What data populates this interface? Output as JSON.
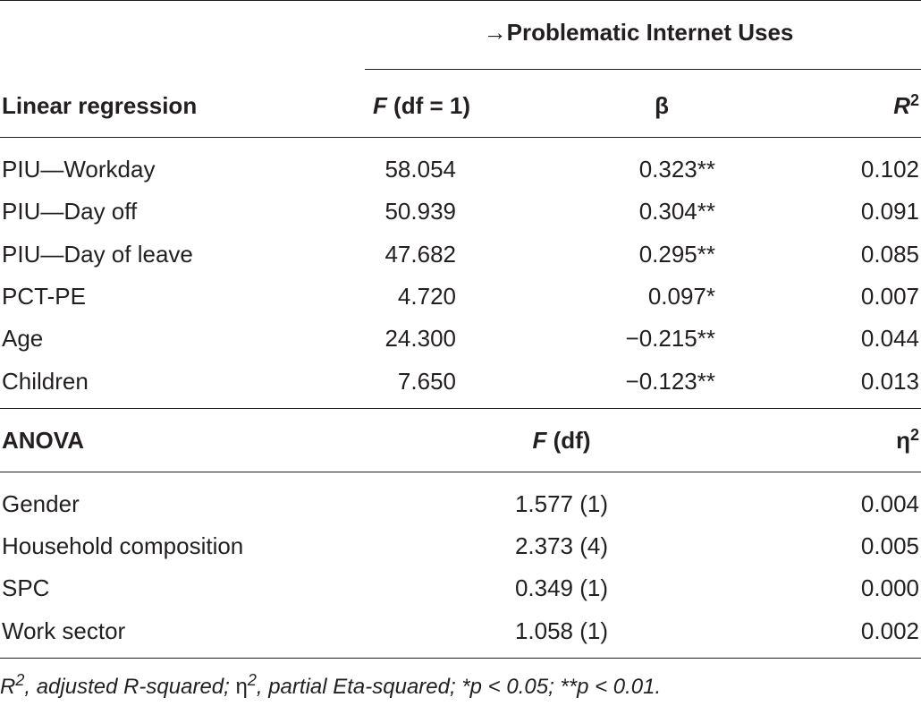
{
  "header": {
    "group_label": "→Problematic Internet Uses",
    "linear": {
      "title": "Linear regression",
      "col_f_italic": "F",
      "col_f_rest": " (df = 1)",
      "col_beta": "β",
      "col_r_italic": "R",
      "col_r_sup": "2"
    },
    "anova": {
      "title": "ANOVA",
      "col_f_italic": "F",
      "col_f_rest": " (df)",
      "col_eta": "η",
      "col_eta_sup": "2"
    }
  },
  "regression_rows": [
    {
      "label": "PIU—Workday",
      "f": "58.054",
      "beta": "0.323**",
      "r2": "0.102"
    },
    {
      "label": "PIU—Day off",
      "f": "50.939",
      "beta": "0.304**",
      "r2": "0.091"
    },
    {
      "label": "PIU—Day of leave",
      "f": "47.682",
      "beta": "0.295**",
      "r2": "0.085"
    },
    {
      "label": "PCT-PE",
      "f": "4.720",
      "beta": "0.097*",
      "r2": "0.007"
    },
    {
      "label": "Age",
      "f": "24.300",
      "beta": "−0.215**",
      "r2": "0.044"
    },
    {
      "label": "Children",
      "f": "7.650",
      "beta": "−0.123**",
      "r2": "0.013"
    }
  ],
  "anova_rows": [
    {
      "label": "Gender",
      "f": "1.577 (1)",
      "eta2": "0.004"
    },
    {
      "label": "Household composition",
      "f": "2.373 (4)",
      "eta2": "0.005"
    },
    {
      "label": "SPC",
      "f": "0.349 (1)",
      "eta2": "0.000"
    },
    {
      "label": "Work sector",
      "f": "1.058 (1)",
      "eta2": "0.002"
    }
  ],
  "footnote": {
    "r": "R",
    "r_sup": "2",
    "r_text": ", adjusted R-squared; ",
    "eta": "η",
    "eta_sup": "2",
    "eta_text": ", partial Eta-squared; *p < 0.05; **p < 0.01."
  }
}
